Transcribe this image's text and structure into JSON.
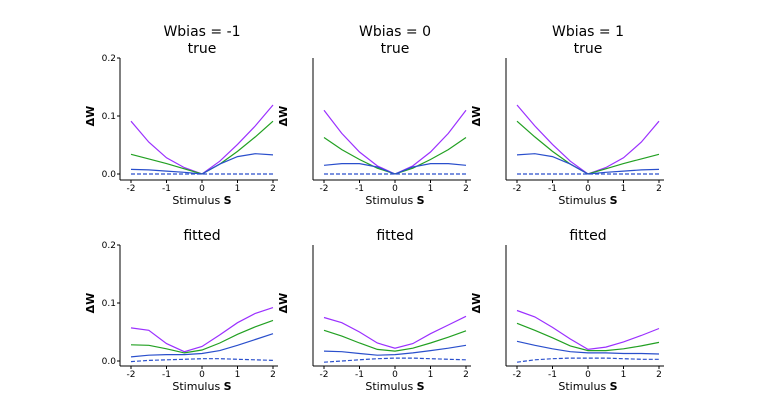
{
  "chart_data": [
    {
      "type": "line",
      "title": "Wbias = -1",
      "subtitle": "true",
      "xlabel_prefix": "Stimulus ",
      "xlabel_bold": "S",
      "ylabel": "ΔW",
      "xlim": [
        -2,
        2
      ],
      "ylim": [
        0,
        0.2
      ],
      "xticks": [
        "-2",
        "-1",
        "0",
        "1",
        "2"
      ],
      "yticks": [
        "0.0",
        "0.1",
        "0.2"
      ],
      "x": [
        -2,
        -1.5,
        -1,
        -0.5,
        0,
        0.5,
        1,
        1.5,
        2
      ],
      "series": [
        {
          "name": "purple",
          "color": "#9b30ff",
          "dashed": false,
          "values": [
            0.091,
            0.055,
            0.028,
            0.011,
            0.0,
            0.022,
            0.051,
            0.083,
            0.119
          ]
        },
        {
          "name": "green",
          "color": "#22a022",
          "dashed": false,
          "values": [
            0.034,
            0.026,
            0.018,
            0.009,
            0.0,
            0.017,
            0.039,
            0.064,
            0.091
          ]
        },
        {
          "name": "blue",
          "color": "#2a4fcc",
          "dashed": false,
          "values": [
            0.008,
            0.007,
            0.005,
            0.003,
            0.0,
            0.017,
            0.03,
            0.035,
            0.033
          ]
        },
        {
          "name": "dashed",
          "color": "#2a4fcc",
          "dashed": true,
          "values": [
            0.0,
            0.0,
            0.0,
            0.0,
            0.0,
            0.0,
            0.0,
            0.0,
            0.0
          ]
        }
      ]
    },
    {
      "type": "line",
      "title": "Wbias = 0",
      "subtitle": "true",
      "xlabel_prefix": "Stimulus ",
      "xlabel_bold": "S",
      "ylabel": "ΔW",
      "xlim": [
        -2,
        2
      ],
      "ylim": [
        0,
        0.2
      ],
      "xticks": [
        "-2",
        "-1",
        "0",
        "1",
        "2"
      ],
      "yticks": [],
      "x": [
        -2,
        -1.5,
        -1,
        -0.5,
        0,
        0.5,
        1,
        1.5,
        2
      ],
      "series": [
        {
          "name": "purple",
          "color": "#9b30ff",
          "dashed": false,
          "values": [
            0.11,
            0.07,
            0.038,
            0.014,
            0.0,
            0.014,
            0.038,
            0.07,
            0.11
          ]
        },
        {
          "name": "green",
          "color": "#22a022",
          "dashed": false,
          "values": [
            0.063,
            0.042,
            0.025,
            0.01,
            0.0,
            0.01,
            0.025,
            0.042,
            0.063
          ]
        },
        {
          "name": "blue",
          "color": "#2a4fcc",
          "dashed": false,
          "values": [
            0.015,
            0.018,
            0.018,
            0.012,
            0.0,
            0.012,
            0.018,
            0.018,
            0.015
          ]
        },
        {
          "name": "dashed",
          "color": "#2a4fcc",
          "dashed": true,
          "values": [
            0.0,
            0.0,
            0.0,
            0.0,
            0.0,
            0.0,
            0.0,
            0.0,
            0.0
          ]
        }
      ]
    },
    {
      "type": "line",
      "title": "Wbias = 1",
      "subtitle": "true",
      "xlabel_prefix": "Stimulus ",
      "xlabel_bold": "S",
      "ylabel": "ΔW",
      "xlim": [
        -2,
        2
      ],
      "ylim": [
        0,
        0.2
      ],
      "xticks": [
        "-2",
        "-1",
        "0",
        "1",
        "2"
      ],
      "yticks": [],
      "x": [
        -2,
        -1.5,
        -1,
        -0.5,
        0,
        0.5,
        1,
        1.5,
        2
      ],
      "series": [
        {
          "name": "purple",
          "color": "#9b30ff",
          "dashed": false,
          "values": [
            0.119,
            0.083,
            0.051,
            0.022,
            0.0,
            0.011,
            0.028,
            0.055,
            0.091
          ]
        },
        {
          "name": "green",
          "color": "#22a022",
          "dashed": false,
          "values": [
            0.091,
            0.064,
            0.039,
            0.017,
            0.0,
            0.009,
            0.018,
            0.026,
            0.034
          ]
        },
        {
          "name": "blue",
          "color": "#2a4fcc",
          "dashed": false,
          "values": [
            0.033,
            0.035,
            0.03,
            0.017,
            0.0,
            0.003,
            0.005,
            0.007,
            0.008
          ]
        },
        {
          "name": "dashed",
          "color": "#2a4fcc",
          "dashed": true,
          "values": [
            0.0,
            0.0,
            0.0,
            0.0,
            0.0,
            0.0,
            0.0,
            0.0,
            0.0
          ]
        }
      ]
    },
    {
      "type": "line",
      "title": "fitted",
      "subtitle": "",
      "xlabel_prefix": "Stimulus ",
      "xlabel_bold": "S",
      "ylabel": "ΔW",
      "xlim": [
        -2,
        2
      ],
      "ylim": [
        0,
        0.2
      ],
      "xticks": [
        "-2",
        "-1",
        "0",
        "1",
        "2"
      ],
      "yticks": [
        "0.0",
        "0.1",
        "0.2"
      ],
      "x": [
        -2,
        -1.5,
        -1,
        -0.5,
        0,
        0.5,
        1,
        1.5,
        2
      ],
      "series": [
        {
          "name": "purple",
          "color": "#9b30ff",
          "dashed": false,
          "values": [
            0.057,
            0.053,
            0.03,
            0.016,
            0.025,
            0.045,
            0.066,
            0.082,
            0.092
          ]
        },
        {
          "name": "green",
          "color": "#22a022",
          "dashed": false,
          "values": [
            0.028,
            0.027,
            0.021,
            0.014,
            0.019,
            0.031,
            0.046,
            0.059,
            0.07
          ]
        },
        {
          "name": "blue",
          "color": "#2a4fcc",
          "dashed": false,
          "values": [
            0.007,
            0.01,
            0.011,
            0.011,
            0.013,
            0.018,
            0.027,
            0.037,
            0.047
          ]
        },
        {
          "name": "dashed",
          "color": "#2a4fcc",
          "dashed": true,
          "values": [
            -0.001,
            0.001,
            0.002,
            0.003,
            0.004,
            0.004,
            0.003,
            0.002,
            0.001
          ]
        }
      ]
    },
    {
      "type": "line",
      "title": "fitted",
      "subtitle": "",
      "xlabel_prefix": "Stimulus ",
      "xlabel_bold": "S",
      "ylabel": "ΔW",
      "xlim": [
        -2,
        2
      ],
      "ylim": [
        0,
        0.2
      ],
      "xticks": [
        "-2",
        "-1",
        "0",
        "1",
        "2"
      ],
      "yticks": [],
      "x": [
        -2,
        -1.5,
        -1,
        -0.5,
        0,
        0.5,
        1,
        1.5,
        2
      ],
      "series": [
        {
          "name": "purple",
          "color": "#9b30ff",
          "dashed": false,
          "values": [
            0.075,
            0.066,
            0.05,
            0.031,
            0.022,
            0.03,
            0.047,
            0.062,
            0.077
          ]
        },
        {
          "name": "green",
          "color": "#22a022",
          "dashed": false,
          "values": [
            0.053,
            0.043,
            0.031,
            0.02,
            0.017,
            0.022,
            0.031,
            0.041,
            0.052
          ]
        },
        {
          "name": "blue",
          "color": "#2a4fcc",
          "dashed": false,
          "values": [
            0.017,
            0.016,
            0.013,
            0.01,
            0.011,
            0.014,
            0.018,
            0.022,
            0.027
          ]
        },
        {
          "name": "dashed",
          "color": "#2a4fcc",
          "dashed": true,
          "values": [
            -0.002,
            0.0,
            0.002,
            0.004,
            0.005,
            0.005,
            0.004,
            0.003,
            0.002
          ]
        }
      ]
    },
    {
      "type": "line",
      "title": "fitted",
      "subtitle": "",
      "xlabel_prefix": "Stimulus ",
      "xlabel_bold": "S",
      "ylabel": "ΔW",
      "xlim": [
        -2,
        2
      ],
      "ylim": [
        0,
        0.2
      ],
      "xticks": [
        "-2",
        "-1",
        "0",
        "1",
        "2"
      ],
      "yticks": [],
      "x": [
        -2,
        -1.5,
        -1,
        -0.5,
        0,
        0.5,
        1,
        1.5,
        2
      ],
      "series": [
        {
          "name": "purple",
          "color": "#9b30ff",
          "dashed": false,
          "values": [
            0.087,
            0.076,
            0.058,
            0.038,
            0.02,
            0.024,
            0.033,
            0.044,
            0.056
          ]
        },
        {
          "name": "green",
          "color": "#22a022",
          "dashed": false,
          "values": [
            0.065,
            0.053,
            0.04,
            0.026,
            0.018,
            0.018,
            0.021,
            0.026,
            0.032
          ]
        },
        {
          "name": "blue",
          "color": "#2a4fcc",
          "dashed": false,
          "values": [
            0.034,
            0.027,
            0.021,
            0.016,
            0.014,
            0.014,
            0.013,
            0.013,
            0.012
          ]
        },
        {
          "name": "dashed",
          "color": "#2a4fcc",
          "dashed": true,
          "values": [
            -0.002,
            0.002,
            0.004,
            0.005,
            0.005,
            0.005,
            0.004,
            0.003,
            0.003
          ]
        }
      ]
    }
  ]
}
